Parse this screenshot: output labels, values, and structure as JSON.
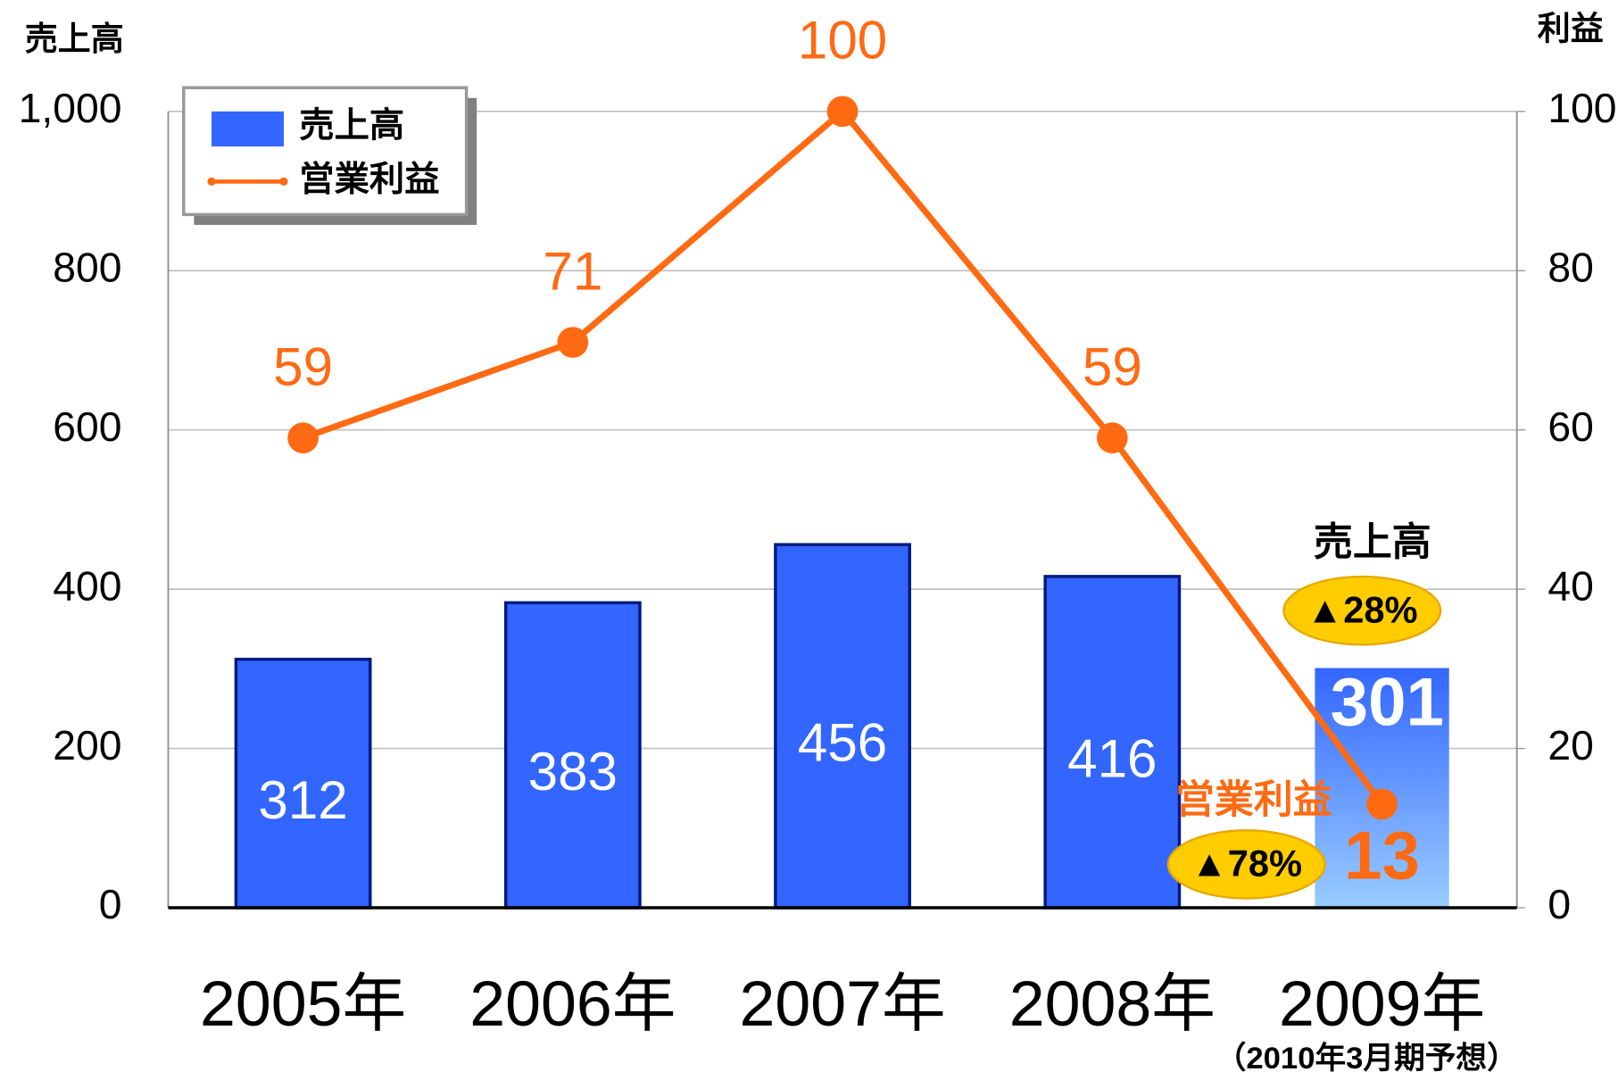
{
  "chart_data": {
    "type": "bar",
    "categories": [
      "2005年",
      "2006年",
      "2007年",
      "2008年",
      "2009年"
    ],
    "category_notes": [
      null,
      null,
      null,
      null,
      "（2010年3月期予想）"
    ],
    "series": [
      {
        "name": "売上高",
        "color": "#3366ff",
        "values": [
          312,
          383,
          456,
          416,
          301
        ]
      },
      {
        "name": "営業利益",
        "color": "#ff6a13",
        "axis": "y2",
        "type": "line",
        "values": [
          59,
          71,
          100,
          59,
          13
        ]
      }
    ],
    "ylabel": "売上高",
    "y2label": "利益",
    "ylim": [
      0,
      1000
    ],
    "yticks": [
      0,
      200,
      400,
      600,
      {
        "value": 1000,
        "label": "1,000"
      },
      800
    ],
    "y2lim": [
      0,
      100
    ],
    "y2ticks": [
      0,
      20,
      40,
      60,
      80,
      100
    ],
    "grid": true,
    "legend": "upper left",
    "annotations": [
      {
        "title": "売上高",
        "text": "▲28%"
      },
      {
        "title": "営業利益",
        "text": "▲78%"
      }
    ]
  }
}
